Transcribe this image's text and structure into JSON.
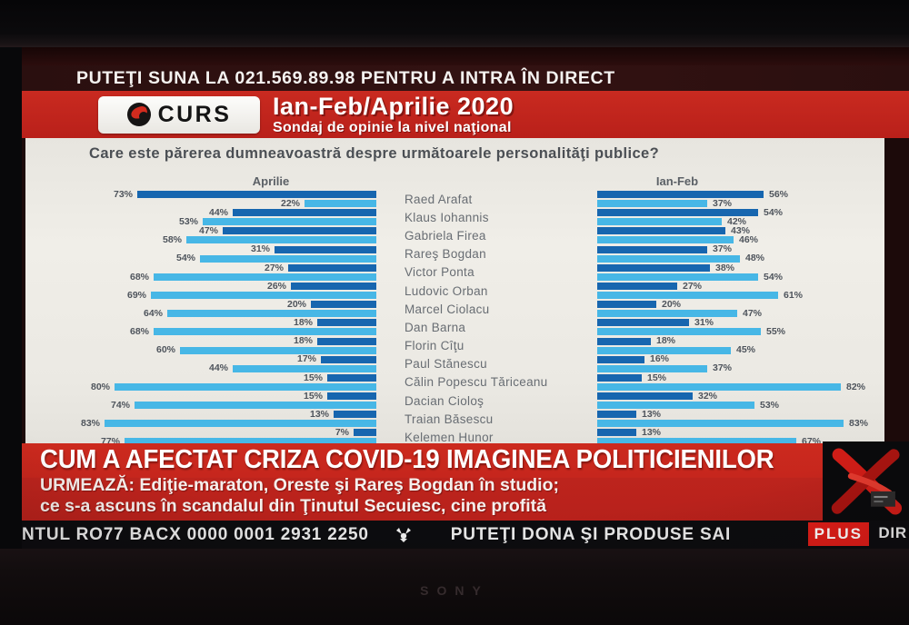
{
  "tv": {
    "brand": "SONY"
  },
  "top_banner": {
    "text": "PUTEŢI SUNA LA 021.569.89.98 PENTRU A INTRA ÎN DIRECT"
  },
  "header": {
    "logo_text": "CURS",
    "title": "Ian-Feb/Aprilie 2020",
    "subtitle": "Sondaj de opinie la nivel naţional"
  },
  "chart_data": {
    "type": "bar",
    "question": "Care este părerea dumneavoastră despre următoarele personalităţi publice?",
    "columns": [
      {
        "header": "Aprilie",
        "key": "aprilie"
      },
      {
        "header": "Ian-Feb",
        "key": "ian_feb"
      }
    ],
    "bar_colors": {
      "dark": "#1766af",
      "light": "#47b7e6"
    },
    "layout_hint": "Aprilie bars right-aligned toward center, Ian-Feb bars left-aligned from center; dark bar on top, light bar below, values in percent",
    "people": [
      {
        "name": "Raed Arafat",
        "aprilie": {
          "dark": 73,
          "light": 22
        },
        "ian_feb": {
          "dark": 56,
          "light": 37
        }
      },
      {
        "name": "Klaus Iohannis",
        "aprilie": {
          "dark": 44,
          "light": 53
        },
        "ian_feb": {
          "dark": 54,
          "light": 42
        }
      },
      {
        "name": "Gabriela Firea",
        "aprilie": {
          "dark": 47,
          "light": 58
        },
        "ian_feb": {
          "dark": 43,
          "light": 46
        }
      },
      {
        "name": "Rareş Bogdan",
        "aprilie": {
          "dark": 31,
          "light": 54
        },
        "ian_feb": {
          "dark": 37,
          "light": 48
        }
      },
      {
        "name": "Victor Ponta",
        "aprilie": {
          "dark": 27,
          "light": 68
        },
        "ian_feb": {
          "dark": 38,
          "light": 54
        }
      },
      {
        "name": "Ludovic Orban",
        "aprilie": {
          "dark": 26,
          "light": 69
        },
        "ian_feb": {
          "dark": 27,
          "light": 61
        }
      },
      {
        "name": "Marcel Ciolacu",
        "aprilie": {
          "dark": 20,
          "light": 64
        },
        "ian_feb": {
          "dark": 20,
          "light": 47
        }
      },
      {
        "name": "Dan Barna",
        "aprilie": {
          "dark": 18,
          "light": 68
        },
        "ian_feb": {
          "dark": 31,
          "light": 55
        }
      },
      {
        "name": "Florin Cîţu",
        "aprilie": {
          "dark": 18,
          "light": 60
        },
        "ian_feb": {
          "dark": 18,
          "light": 45
        }
      },
      {
        "name": "Paul Stănescu",
        "aprilie": {
          "dark": 17,
          "light": 44
        },
        "ian_feb": {
          "dark": 16,
          "light": 37
        }
      },
      {
        "name": "Călin Popescu Tăriceanu",
        "aprilie": {
          "dark": 15,
          "light": 80
        },
        "ian_feb": {
          "dark": 15,
          "light": 82
        }
      },
      {
        "name": "Dacian Cioloş",
        "aprilie": {
          "dark": 15,
          "light": 74
        },
        "ian_feb": {
          "dark": 32,
          "light": 53
        }
      },
      {
        "name": "Traian Băsescu",
        "aprilie": {
          "dark": 13,
          "light": 83
        },
        "ian_feb": {
          "dark": 13,
          "light": 83
        }
      },
      {
        "name": "Kelemen Hunor",
        "aprilie": {
          "dark": 7,
          "light": 77
        },
        "ian_feb": {
          "dark": 13,
          "light": 67
        }
      }
    ]
  },
  "breaking": {
    "headline": "CUM A AFECTAT CRIZA COVID-19 IMAGINEA POLITICIENILOR",
    "next_line1": "URMEAZĂ: Ediţie-maraton, Oreste şi Rareş Bogdan în studio;",
    "next_line2": "ce s-a ascuns în scandalul din Ţinutul Secuiesc, cine profită"
  },
  "ticker": {
    "left": "NTUL RO77 BACX 0000 0001 2931 2250",
    "right": "PUTEŢI DONA ŞI PRODUSE SAI",
    "plus": "PLUS",
    "dir": "DIR"
  },
  "colors": {
    "banner_red": "#c5261d",
    "dark_maroon": "#2e1111",
    "bar_dark_blue": "#1766af",
    "bar_light_blue": "#47b7e6",
    "plus_badge_red": "#df1d18"
  }
}
